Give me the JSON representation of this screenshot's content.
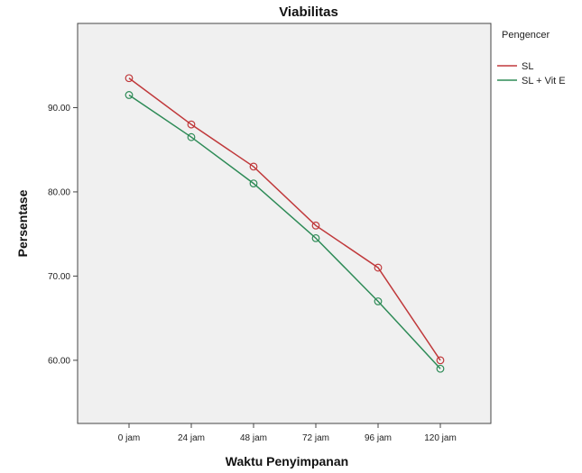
{
  "chart_data": {
    "type": "line",
    "title": "Viabilitas",
    "xlabel": "Waktu Penyimpanan",
    "ylabel": "Persentase",
    "categories": [
      "0 jam",
      "24 jam",
      "48 jam",
      "72 jam",
      "96 jam",
      "120 jam"
    ],
    "ylim": [
      52.5,
      100
    ],
    "yticks": [
      60,
      70,
      80,
      90
    ],
    "ytick_labels": [
      "60.00",
      "70.00",
      "80.00",
      "90.00"
    ],
    "grid": false,
    "legend_title": "Pengencer",
    "legend_position": "right",
    "series": [
      {
        "name": "SL",
        "color": "#c0393b",
        "values": [
          93.5,
          88.0,
          83.0,
          76.0,
          71.0,
          60.0
        ]
      },
      {
        "name": "SL + Vit E",
        "color": "#2e8b57",
        "values": [
          91.5,
          86.5,
          81.0,
          74.5,
          67.0,
          59.0
        ]
      }
    ],
    "marker": "circle-open"
  }
}
